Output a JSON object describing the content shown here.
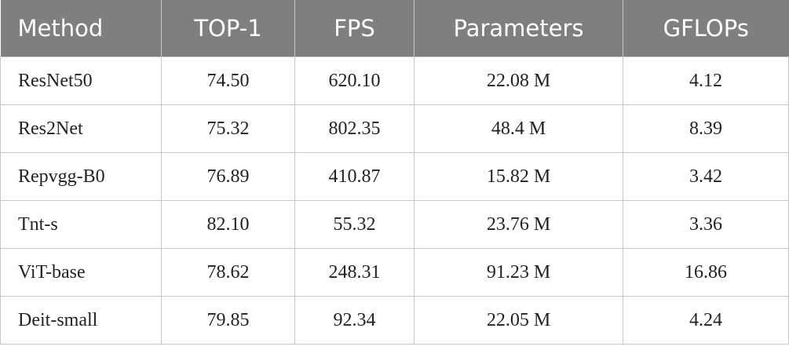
{
  "table": {
    "header": [
      "Method",
      "TOP-1",
      "FPS",
      "Parameters",
      "GFLOPs"
    ],
    "rows": [
      [
        "ResNet50",
        "74.50",
        "620.10",
        "22.08 M",
        "4.12"
      ],
      [
        "Res2Net",
        "75.32",
        "802.35",
        "48.4 M",
        "8.39"
      ],
      [
        "Repvgg-B0",
        "76.89",
        "410.87",
        "15.82 M",
        "3.42"
      ],
      [
        "Tnt-s",
        "82.10",
        "55.32",
        "23.76 M",
        "3.36"
      ],
      [
        "ViT-base",
        "78.62",
        "248.31",
        "91.23 M",
        "16.86"
      ],
      [
        "Deit-small",
        "79.85",
        "92.34",
        "22.05 M",
        "4.24"
      ]
    ]
  }
}
